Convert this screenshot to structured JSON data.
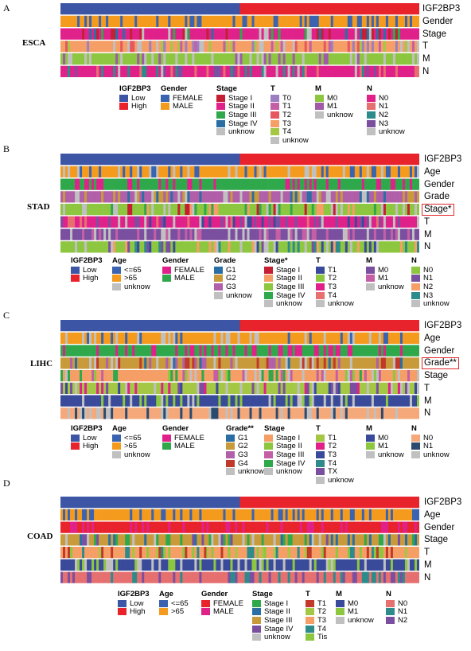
{
  "panels": [
    {
      "letter": "A",
      "cancer": "ESCA",
      "tracks": [
        {
          "label": "IGF2BP3",
          "colors": [
            "#3c55a5",
            "#e8232c"
          ]
        },
        {
          "label": "Gender",
          "colors": [
            "#f49a1d",
            "#3a63b0"
          ]
        },
        {
          "label": "Stage",
          "colors": [
            "#e0218a",
            "#c41f33",
            "#2ea84a",
            "#2a6ea3",
            "#c0c0c0"
          ]
        },
        {
          "label": "T",
          "colors": [
            "#f59e66",
            "#9c7fc1",
            "#c55fa5",
            "#e7575e",
            "#a4c744",
            "#c0c0c0"
          ]
        },
        {
          "label": "M",
          "colors": [
            "#8dc63f",
            "#a05aa6",
            "#c0c0c0"
          ]
        },
        {
          "label": "N",
          "colors": [
            "#e0218a",
            "#e66f6f",
            "#2e8b8b",
            "#7b4fa0",
            "#c0c0c0"
          ]
        }
      ],
      "legend": [
        {
          "title": "IGF2BP3",
          "items": [
            {
              "label": "Low",
              "color": "#3c55a5"
            },
            {
              "label": "High",
              "color": "#e8232c"
            }
          ]
        },
        {
          "title": "Gender",
          "items": [
            {
              "label": "FEMALE",
              "color": "#3a63b0"
            },
            {
              "label": "MALE",
              "color": "#f49a1d"
            }
          ]
        },
        {
          "title": "Stage",
          "items": [
            {
              "label": "Stage I",
              "color": "#c41f33"
            },
            {
              "label": "Stage II",
              "color": "#e0218a"
            },
            {
              "label": "Stage III",
              "color": "#2ea84a"
            },
            {
              "label": "Stage IV",
              "color": "#2a6ea3"
            },
            {
              "label": "unknow",
              "color": "#c0c0c0"
            }
          ]
        },
        {
          "title": "T",
          "items": [
            {
              "label": "T0",
              "color": "#9c7fc1"
            },
            {
              "label": "T1",
              "color": "#c55fa5"
            },
            {
              "label": "T2",
              "color": "#e7575e"
            },
            {
              "label": "T3",
              "color": "#f59e66"
            },
            {
              "label": "T4",
              "color": "#a4c744"
            },
            {
              "label": "unknow",
              "color": "#c0c0c0"
            }
          ]
        },
        {
          "title": "M",
          "items": [
            {
              "label": "M0",
              "color": "#8dc63f"
            },
            {
              "label": "M1",
              "color": "#a05aa6"
            },
            {
              "label": "unknow",
              "color": "#c0c0c0"
            }
          ]
        },
        {
          "title": "N",
          "items": [
            {
              "label": "N0",
              "color": "#e0218a"
            },
            {
              "label": "N1",
              "color": "#e66f6f"
            },
            {
              "label": "N2",
              "color": "#2e8b8b"
            },
            {
              "label": "N3",
              "color": "#7b4fa0"
            },
            {
              "label": "unknow",
              "color": "#c0c0c0"
            }
          ]
        }
      ]
    },
    {
      "letter": "B",
      "cancer": "STAD",
      "tracks": [
        {
          "label": "IGF2BP3",
          "colors": [
            "#3c55a5",
            "#e8232c"
          ]
        },
        {
          "label": "Age",
          "colors": [
            "#f49a1d",
            "#3a63b0",
            "#c0c0c0"
          ]
        },
        {
          "label": "Gender",
          "colors": [
            "#2ea84a",
            "#e0218a"
          ]
        },
        {
          "label": "Grade",
          "colors": [
            "#b05fa8",
            "#c89a3a",
            "#2a6ea3",
            "#c0c0c0"
          ]
        },
        {
          "label": "Stage*",
          "boxed": true,
          "colors": [
            "#8dc63f",
            "#f59e66",
            "#c41f33",
            "#2ea84a",
            "#c0c0c0"
          ]
        },
        {
          "label": "T",
          "colors": [
            "#e0218a",
            "#7b4fa0",
            "#3a4a9b",
            "#e66f6f",
            "#c0c0c0"
          ]
        },
        {
          "label": "M",
          "colors": [
            "#7b4fa0",
            "#c55fa5",
            "#c0c0c0"
          ]
        },
        {
          "label": "N",
          "colors": [
            "#8dc63f",
            "#3a4a9b",
            "#7b4fa0",
            "#f59e66",
            "#2e8b8b",
            "#c0c0c0"
          ]
        }
      ],
      "legend": [
        {
          "title": "IGF2BP3",
          "items": [
            {
              "label": "Low",
              "color": "#3c55a5"
            },
            {
              "label": "High",
              "color": "#e8232c"
            }
          ]
        },
        {
          "title": "Age",
          "items": [
            {
              "label": "<=65",
              "color": "#3a63b0"
            },
            {
              "label": ">65",
              "color": "#f49a1d"
            },
            {
              "label": "unknow",
              "color": "#c0c0c0"
            }
          ]
        },
        {
          "title": "Gender",
          "items": [
            {
              "label": "FEMALE",
              "color": "#e0218a"
            },
            {
              "label": "MALE",
              "color": "#2ea84a"
            }
          ]
        },
        {
          "title": "Grade",
          "items": [
            {
              "label": "G1",
              "color": "#2a6ea3"
            },
            {
              "label": "G2",
              "color": "#c89a3a"
            },
            {
              "label": "G3",
              "color": "#b05fa8"
            },
            {
              "label": "unknow",
              "color": "#c0c0c0"
            }
          ]
        },
        {
          "title": "Stage*",
          "items": [
            {
              "label": "Stage I",
              "color": "#c41f33"
            },
            {
              "label": "Stage II",
              "color": "#f59e66"
            },
            {
              "label": "Stage III",
              "color": "#8dc63f"
            },
            {
              "label": "Stage IV",
              "color": "#2ea84a"
            },
            {
              "label": "unknow",
              "color": "#c0c0c0"
            }
          ]
        },
        {
          "title": "T",
          "items": [
            {
              "label": "T1",
              "color": "#3a4a9b"
            },
            {
              "label": "T2",
              "color": "#8dc63f"
            },
            {
              "label": "T3",
              "color": "#e0218a"
            },
            {
              "label": "T4",
              "color": "#e66f6f"
            },
            {
              "label": "unknow",
              "color": "#c0c0c0"
            }
          ]
        },
        {
          "title": "M",
          "items": [
            {
              "label": "M0",
              "color": "#7b4fa0"
            },
            {
              "label": "M1",
              "color": "#c55fa5"
            },
            {
              "label": "unknow",
              "color": "#c0c0c0"
            }
          ]
        },
        {
          "title": "N",
          "items": [
            {
              "label": "N0",
              "color": "#8dc63f"
            },
            {
              "label": "N1",
              "color": "#7b4fa0"
            },
            {
              "label": "N2",
              "color": "#f59e66"
            },
            {
              "label": "N3",
              "color": "#2e8b8b"
            },
            {
              "label": "unknow",
              "color": "#c0c0c0"
            }
          ]
        }
      ]
    },
    {
      "letter": "C",
      "cancer": "LIHC",
      "tracks": [
        {
          "label": "IGF2BP3",
          "colors": [
            "#3c55a5",
            "#e8232c"
          ]
        },
        {
          "label": "Age",
          "colors": [
            "#f49a1d",
            "#3a63b0",
            "#c0c0c0"
          ]
        },
        {
          "label": "Gender",
          "colors": [
            "#2ea84a",
            "#e0218a"
          ]
        },
        {
          "label": "Grade**",
          "boxed": true,
          "colors": [
            "#c89a3a",
            "#b05fa8",
            "#2a6ea3",
            "#c0392b",
            "#c0c0c0"
          ]
        },
        {
          "label": "Stage",
          "colors": [
            "#f59e66",
            "#8dc63f",
            "#c55fa5",
            "#2ea84a",
            "#c0c0c0"
          ]
        },
        {
          "label": "T",
          "colors": [
            "#a4c744",
            "#e0218a",
            "#3a4a9b",
            "#7b4fa0",
            "#c0c0c0"
          ]
        },
        {
          "label": "M",
          "colors": [
            "#3a4a9b",
            "#8dc63f",
            "#c0c0c0"
          ]
        },
        {
          "label": "N",
          "colors": [
            "#f5a97a",
            "#2a4a70",
            "#c0c0c0"
          ]
        }
      ],
      "legend": [
        {
          "title": "IGF2BP3",
          "items": [
            {
              "label": "Low",
              "color": "#3c55a5"
            },
            {
              "label": "High",
              "color": "#e8232c"
            }
          ]
        },
        {
          "title": "Age",
          "items": [
            {
              "label": "<=65",
              "color": "#3a63b0"
            },
            {
              "label": ">65",
              "color": "#f49a1d"
            },
            {
              "label": "unknow",
              "color": "#c0c0c0"
            }
          ]
        },
        {
          "title": "Gender",
          "items": [
            {
              "label": "FEMALE",
              "color": "#e0218a"
            },
            {
              "label": "MALE",
              "color": "#2ea84a"
            }
          ]
        },
        {
          "title": "Grade**",
          "items": [
            {
              "label": "G1",
              "color": "#2a6ea3"
            },
            {
              "label": "G2",
              "color": "#c89a3a"
            },
            {
              "label": "G3",
              "color": "#b05fa8"
            },
            {
              "label": "G4",
              "color": "#c0392b"
            },
            {
              "label": "unknow",
              "color": "#c0c0c0"
            }
          ]
        },
        {
          "title": "Stage",
          "items": [
            {
              "label": "Stage I",
              "color": "#f59e66"
            },
            {
              "label": "Stage II",
              "color": "#8dc63f"
            },
            {
              "label": "Stage III",
              "color": "#c55fa5"
            },
            {
              "label": "Stage IV",
              "color": "#2ea84a"
            },
            {
              "label": "unknow",
              "color": "#c0c0c0"
            }
          ]
        },
        {
          "title": "T",
          "items": [
            {
              "label": "T1",
              "color": "#a4c744"
            },
            {
              "label": "T2",
              "color": "#e0218a"
            },
            {
              "label": "T3",
              "color": "#3a4a9b"
            },
            {
              "label": "T4",
              "color": "#2e8b8b"
            },
            {
              "label": "TX",
              "color": "#7b4fa0"
            },
            {
              "label": "unknow",
              "color": "#c0c0c0"
            }
          ]
        },
        {
          "title": "M",
          "items": [
            {
              "label": "M0",
              "color": "#3a4a9b"
            },
            {
              "label": "M1",
              "color": "#8dc63f"
            },
            {
              "label": "unknow",
              "color": "#c0c0c0"
            }
          ]
        },
        {
          "title": "N",
          "items": [
            {
              "label": "N0",
              "color": "#f5a97a"
            },
            {
              "label": "N1",
              "color": "#2a4a70"
            },
            {
              "label": "unknow",
              "color": "#c0c0c0"
            }
          ]
        }
      ]
    },
    {
      "letter": "D",
      "cancer": "COAD",
      "tracks": [
        {
          "label": "IGF2BP3",
          "colors": [
            "#3c55a5",
            "#e8232c"
          ]
        },
        {
          "label": "Age",
          "colors": [
            "#f49a1d",
            "#3a63b0"
          ]
        },
        {
          "label": "Gender",
          "colors": [
            "#e8232c",
            "#e0218a"
          ]
        },
        {
          "label": "Stage",
          "colors": [
            "#c89a3a",
            "#2ea84a",
            "#7b4fa0",
            "#2a6ea3",
            "#c0c0c0"
          ]
        },
        {
          "label": "T",
          "colors": [
            "#f59e66",
            "#c0392b",
            "#a4c744",
            "#2e8b8b",
            "#8dc63f"
          ]
        },
        {
          "label": "M",
          "colors": [
            "#3a4a9b",
            "#8dc63f",
            "#c0c0c0"
          ]
        },
        {
          "label": "N",
          "colors": [
            "#e66f6f",
            "#7b4fa0",
            "#2e8b8b"
          ]
        }
      ],
      "legend": [
        {
          "title": "IGF2BP3",
          "items": [
            {
              "label": "Low",
              "color": "#3c55a5"
            },
            {
              "label": "High",
              "color": "#e8232c"
            }
          ]
        },
        {
          "title": "Age",
          "items": [
            {
              "label": "<=65",
              "color": "#3a63b0"
            },
            {
              "label": ">65",
              "color": "#f49a1d"
            }
          ]
        },
        {
          "title": "Gender",
          "items": [
            {
              "label": "FEMALE",
              "color": "#e8232c"
            },
            {
              "label": "MALE",
              "color": "#e0218a"
            }
          ]
        },
        {
          "title": "Stage",
          "items": [
            {
              "label": "Stage I",
              "color": "#2ea84a"
            },
            {
              "label": "Stage II",
              "color": "#2a6ea3"
            },
            {
              "label": "Stage III",
              "color": "#c89a3a"
            },
            {
              "label": "Stage IV",
              "color": "#7b4fa0"
            },
            {
              "label": "unknow",
              "color": "#c0c0c0"
            }
          ]
        },
        {
          "title": "T",
          "items": [
            {
              "label": "T1",
              "color": "#c0392b"
            },
            {
              "label": "T2",
              "color": "#a4c744"
            },
            {
              "label": "T3",
              "color": "#f59e66"
            },
            {
              "label": "T4",
              "color": "#2e8b8b"
            },
            {
              "label": "Tis",
              "color": "#8dc63f"
            }
          ]
        },
        {
          "title": "M",
          "items": [
            {
              "label": "M0",
              "color": "#3a4a9b"
            },
            {
              "label": "M1",
              "color": "#8dc63f"
            },
            {
              "label": "unknow",
              "color": "#c0c0c0"
            }
          ]
        },
        {
          "title": "N",
          "items": [
            {
              "label": "N0",
              "color": "#e66f6f"
            },
            {
              "label": "N1",
              "color": "#2e8b8b"
            },
            {
              "label": "N2",
              "color": "#7b4fa0"
            }
          ]
        }
      ]
    }
  ]
}
